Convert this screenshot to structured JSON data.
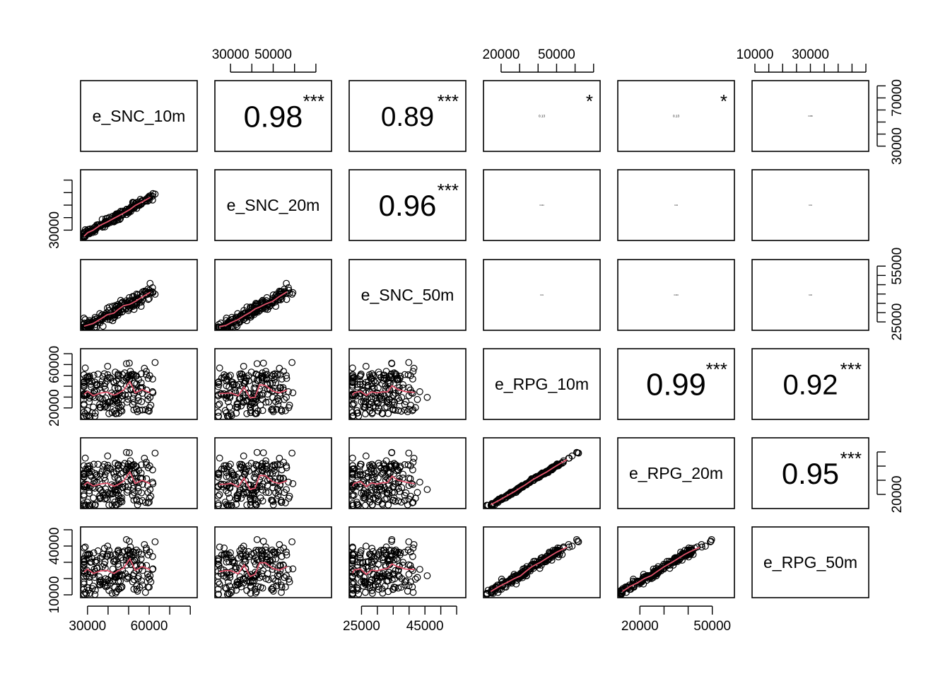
{
  "chart_data": {
    "type": "scatter",
    "variables": [
      "e_SNC_10m",
      "e_SNC_20m",
      "e_SNC_50m",
      "e_RPG_10m",
      "e_RPG_20m",
      "e_RPG_50m"
    ],
    "ranges": [
      [
        28000,
        82000
      ],
      [
        24000,
        76000
      ],
      [
        22000,
        57000
      ],
      [
        12000,
        72000
      ],
      [
        12000,
        58000
      ],
      [
        10000,
        50000
      ]
    ],
    "axes": [
      {
        "side": "top",
        "col": 1,
        "ticks": [
          30000,
          40000,
          50000,
          60000,
          70000
        ],
        "labels": [
          "30000",
          "50000"
        ]
      },
      {
        "side": "top",
        "col": 3,
        "ticks": [
          20000,
          30000,
          40000,
          50000,
          60000,
          70000
        ],
        "labels": [
          "20000",
          "50000"
        ]
      },
      {
        "side": "top",
        "col": 5,
        "ticks": [
          10000,
          15000,
          20000,
          25000,
          30000,
          35000,
          40000,
          45000,
          50000
        ],
        "labels": [
          "10000",
          "30000"
        ]
      },
      {
        "side": "bottom",
        "col": 0,
        "ticks": [
          30000,
          40000,
          50000,
          60000,
          70000,
          80000
        ],
        "labels": [
          "30000",
          "60000"
        ]
      },
      {
        "side": "bottom",
        "col": 2,
        "ticks": [
          25000,
          30000,
          35000,
          40000,
          45000,
          50000,
          55000
        ],
        "labels": [
          "25000",
          "45000"
        ]
      },
      {
        "side": "bottom",
        "col": 4,
        "ticks": [
          20000,
          30000,
          40000,
          50000
        ],
        "labels": [
          "20000",
          "50000"
        ]
      },
      {
        "side": "left",
        "row": 1,
        "ticks": [
          30000,
          40000,
          50000,
          60000,
          70000
        ],
        "labels": [
          "30000"
        ]
      },
      {
        "side": "left",
        "row": 3,
        "ticks": [
          20000,
          30000,
          40000,
          50000,
          60000,
          70000
        ],
        "labels": [
          "20000",
          "60000"
        ]
      },
      {
        "side": "left",
        "row": 5,
        "ticks": [
          10000,
          20000,
          30000,
          40000,
          50000
        ],
        "labels": [
          "10000",
          "40000"
        ]
      },
      {
        "side": "right",
        "row": 0,
        "ticks": [
          30000,
          40000,
          50000,
          60000,
          70000,
          80000
        ],
        "labels": [
          "30000",
          "70000"
        ]
      },
      {
        "side": "right",
        "row": 2,
        "ticks": [
          25000,
          30000,
          35000,
          40000,
          45000,
          50000,
          55000
        ],
        "labels": [
          "25000",
          "55000"
        ]
      },
      {
        "side": "right",
        "row": 4,
        "ticks": [
          20000,
          30000,
          40000,
          50000
        ],
        "labels": [
          "20000"
        ]
      }
    ],
    "correlations": [
      {
        "row": 0,
        "col": 1,
        "value": "0.98",
        "stars": "***"
      },
      {
        "row": 0,
        "col": 2,
        "value": "0.89",
        "stars": "***"
      },
      {
        "row": 0,
        "col": 3,
        "value": "0.13",
        "stars": "*"
      },
      {
        "row": 0,
        "col": 4,
        "value": "0.13",
        "stars": "*"
      },
      {
        "row": 0,
        "col": 5,
        "value": "0.069",
        "stars": ""
      },
      {
        "row": 1,
        "col": 2,
        "value": "0.96",
        "stars": "***"
      },
      {
        "row": 1,
        "col": 3,
        "value": "0.044",
        "stars": ""
      },
      {
        "row": 1,
        "col": 4,
        "value": "0.04",
        "stars": ""
      },
      {
        "row": 1,
        "col": 5,
        "value": "0.01",
        "stars": ""
      },
      {
        "row": 2,
        "col": 3,
        "value": "0.01",
        "stars": ""
      },
      {
        "row": 2,
        "col": 4,
        "value": "0.004",
        "stars": ""
      },
      {
        "row": 2,
        "col": 5,
        "value": "0.02",
        "stars": ""
      },
      {
        "row": 3,
        "col": 4,
        "value": "0.99",
        "stars": "***"
      },
      {
        "row": 3,
        "col": 5,
        "value": "0.92",
        "stars": "***"
      },
      {
        "row": 4,
        "col": 5,
        "value": "0.95",
        "stars": "***"
      }
    ],
    "smooth_color": "#DF536B",
    "star_color": "#DF536B",
    "point_style": "open-circle",
    "grid": false,
    "legend": "none"
  }
}
